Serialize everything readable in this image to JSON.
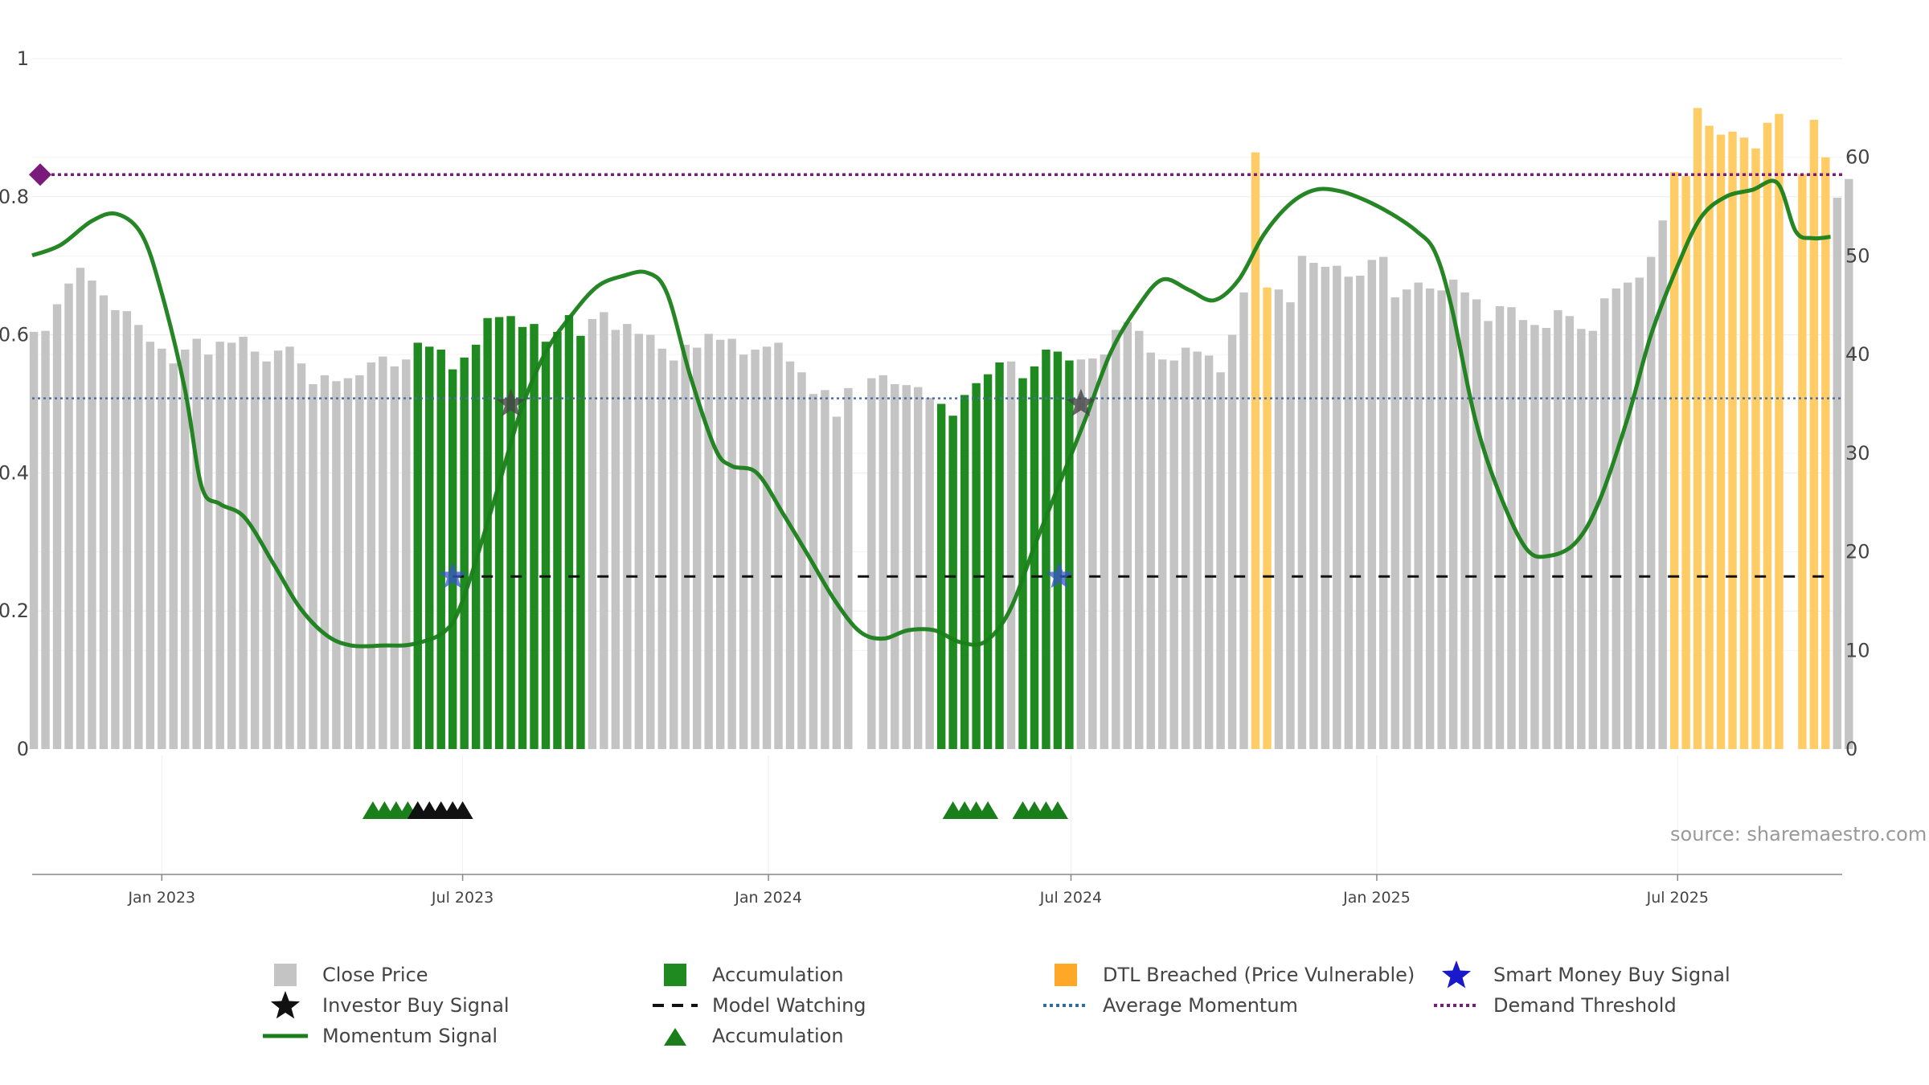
{
  "chart_data": {
    "type": "bar",
    "source_text": "source: sharemaestro.com",
    "left_axis": {
      "ylim": [
        0,
        1
      ],
      "ticks": [
        "0",
        "0.2",
        "0.4",
        "0.6",
        "0.8",
        "1"
      ]
    },
    "right_axis": {
      "ylim": [
        0,
        70
      ],
      "ticks": [
        "0",
        "10",
        "20",
        "30",
        "40",
        "50",
        "60"
      ]
    },
    "x_range": [
      "2022-10-15",
      "2025-10-08"
    ],
    "x_ticks": [
      {
        "date": "2023-01-01",
        "label": "Jan 2023"
      },
      {
        "date": "2023-07-01",
        "label": "Jul 2023"
      },
      {
        "date": "2024-01-01",
        "label": "Jan 2024"
      },
      {
        "date": "2024-07-01",
        "label": "Jul 2024"
      },
      {
        "date": "2025-01-01",
        "label": "Jan 2025"
      },
      {
        "date": "2025-07-01",
        "label": "Jul 2025"
      }
    ],
    "close_price": {
      "start": "2022-10-16",
      "interval_days": 7,
      "values": [
        42.3,
        42.4,
        45.1,
        47.2,
        48.8,
        47.5,
        46.0,
        44.5,
        44.4,
        43.0,
        41.3,
        40.6,
        39.1,
        40.5,
        41.6,
        40.0,
        41.3,
        41.2,
        41.8,
        40.3,
        39.3,
        40.4,
        40.8,
        39.1,
        37.0,
        37.9,
        37.3,
        37.6,
        37.9,
        39.2,
        39.8,
        38.8,
        39.5,
        41.2,
        40.8,
        40.5,
        38.5,
        39.7,
        41.0,
        43.7,
        43.8,
        43.9,
        42.8,
        43.1,
        41.3,
        42.3,
        44.0,
        41.9,
        43.6,
        44.3,
        42.5,
        43.1,
        42.1,
        42.0,
        40.6,
        39.4,
        41.0,
        40.7,
        42.1,
        41.5,
        41.6,
        40.0,
        40.5,
        40.8,
        41.2,
        39.3,
        38.2,
        36.0,
        36.4,
        33.7,
        36.6,
        0,
        37.6,
        37.9,
        37.0,
        36.9,
        36.7,
        35.6,
        35.0,
        33.8,
        35.9,
        37.1,
        38.0,
        39.2,
        39.3,
        37.6,
        38.8,
        40.5,
        40.3,
        39.4,
        39.5,
        39.6,
        40.0,
        42.5,
        43.3,
        42.4,
        40.2,
        39.5,
        39.4,
        40.7,
        40.3,
        39.9,
        38.2,
        42.0,
        46.3,
        46.1,
        46.8,
        46.6,
        45.3,
        50.0,
        49.3,
        48.9,
        49.0,
        47.9,
        48.0,
        49.6,
        49.9,
        45.8,
        46.6,
        47.3,
        46.7,
        46.5,
        47.6,
        46.3,
        45.6,
        43.4,
        44.9,
        44.8,
        43.5,
        43.0,
        42.7,
        44.5,
        43.9,
        42.6,
        42.4,
        45.7,
        46.7,
        47.3,
        47.8,
        49.9,
        53.6,
        52.9,
        54.9,
        56.4,
        56.6,
        57.7,
        56.6,
        55.9,
        54.5,
        55.7,
        57.5,
        58.8,
        58.0,
        54.4,
        60.0,
        55.9,
        57.8
      ],
      "color": "#c4c4c4"
    },
    "accumulation_bars": {
      "color": "#1f8a1f",
      "ranges": [
        [
          "2023-06-04",
          "2023-09-10"
        ],
        [
          "2024-04-14",
          "2024-05-19"
        ],
        [
          "2024-06-02",
          "2024-07-01"
        ]
      ]
    },
    "dtl_breached_bars": {
      "color": "#ffcc66",
      "ranges": [
        [
          "2024-10-20",
          "2024-10-27"
        ],
        [
          "2025-06-29",
          "2025-10-01"
        ]
      ]
    },
    "dtl_breached_overrides": {
      "2024-10-20": 60.5,
      "2025-06-29": 58.5,
      "2025-07-06": 58.1,
      "2025-07-13": 65.0,
      "2025-07-20": 63.2,
      "2025-07-27": 62.3,
      "2025-08-03": 62.6,
      "2025-08-10": 62.0,
      "2025-08-17": 60.9,
      "2025-08-24": 63.5,
      "2025-08-31": 64.4,
      "2025-09-07": 0,
      "2025-09-14": 58.3,
      "2025-09-21": 63.8
    },
    "momentum_signal": {
      "color": "#1a7f1a",
      "points": [
        [
          "2022-10-15",
          0.715
        ],
        [
          "2022-11-01",
          0.73
        ],
        [
          "2022-11-20",
          0.765
        ],
        [
          "2022-12-05",
          0.775
        ],
        [
          "2022-12-20",
          0.745
        ],
        [
          "2023-01-01",
          0.66
        ],
        [
          "2023-01-15",
          0.52
        ],
        [
          "2023-01-25",
          0.38
        ],
        [
          "2023-02-05",
          0.355
        ],
        [
          "2023-02-20",
          0.335
        ],
        [
          "2023-03-10",
          0.265
        ],
        [
          "2023-03-25",
          0.205
        ],
        [
          "2023-04-10",
          0.165
        ],
        [
          "2023-04-25",
          0.15
        ],
        [
          "2023-05-15",
          0.15
        ],
        [
          "2023-06-01",
          0.152
        ],
        [
          "2023-06-20",
          0.17
        ],
        [
          "2023-07-01",
          0.215
        ],
        [
          "2023-07-20",
          0.36
        ],
        [
          "2023-08-05",
          0.49
        ],
        [
          "2023-08-20",
          0.575
        ],
        [
          "2023-09-05",
          0.63
        ],
        [
          "2023-09-20",
          0.67
        ],
        [
          "2023-10-05",
          0.685
        ],
        [
          "2023-10-20",
          0.69
        ],
        [
          "2023-11-01",
          0.66
        ],
        [
          "2023-11-15",
          0.54
        ],
        [
          "2023-11-30",
          0.435
        ],
        [
          "2023-12-10",
          0.41
        ],
        [
          "2023-12-25",
          0.4
        ],
        [
          "2024-01-10",
          0.34
        ],
        [
          "2024-01-25",
          0.28
        ],
        [
          "2024-02-10",
          0.215
        ],
        [
          "2024-02-25",
          0.17
        ],
        [
          "2024-03-10",
          0.16
        ],
        [
          "2024-03-25",
          0.172
        ],
        [
          "2024-04-10",
          0.172
        ],
        [
          "2024-04-25",
          0.155
        ],
        [
          "2024-05-10",
          0.155
        ],
        [
          "2024-05-25",
          0.2
        ],
        [
          "2024-06-10",
          0.3
        ],
        [
          "2024-06-25",
          0.39
        ],
        [
          "2024-07-10",
          0.48
        ],
        [
          "2024-07-25",
          0.575
        ],
        [
          "2024-08-10",
          0.64
        ],
        [
          "2024-08-25",
          0.68
        ],
        [
          "2024-09-10",
          0.665
        ],
        [
          "2024-09-25",
          0.65
        ],
        [
          "2024-10-10",
          0.68
        ],
        [
          "2024-10-25",
          0.745
        ],
        [
          "2024-11-10",
          0.79
        ],
        [
          "2024-11-25",
          0.81
        ],
        [
          "2024-12-10",
          0.808
        ],
        [
          "2024-12-25",
          0.795
        ],
        [
          "2025-01-10",
          0.775
        ],
        [
          "2025-01-25",
          0.75
        ],
        [
          "2025-02-05",
          0.72
        ],
        [
          "2025-02-15",
          0.64
        ],
        [
          "2025-03-01",
          0.48
        ],
        [
          "2025-03-15",
          0.375
        ],
        [
          "2025-04-01",
          0.29
        ],
        [
          "2025-04-15",
          0.28
        ],
        [
          "2025-05-01",
          0.3
        ],
        [
          "2025-05-15",
          0.36
        ],
        [
          "2025-06-01",
          0.48
        ],
        [
          "2025-06-15",
          0.6
        ],
        [
          "2025-07-01",
          0.7
        ],
        [
          "2025-07-15",
          0.77
        ],
        [
          "2025-07-30",
          0.8
        ],
        [
          "2025-08-15",
          0.81
        ],
        [
          "2025-08-30",
          0.82
        ],
        [
          "2025-09-10",
          0.75
        ],
        [
          "2025-09-20",
          0.74
        ],
        [
          "2025-10-01",
          0.742
        ]
      ]
    },
    "average_momentum": {
      "value": 0.508,
      "color": "#4a6fa5"
    },
    "demand_threshold": {
      "value": 0.832,
      "color": "#7a1a7a"
    },
    "model_watching": {
      "value": 0.25,
      "start": "2023-06-25",
      "end": "2025-10-05",
      "color": "#111111"
    },
    "smart_money_buy_signal": {
      "color": "#3a56c9",
      "points": [
        [
          "2023-06-25",
          0.25
        ],
        [
          "2024-06-24",
          0.25
        ]
      ]
    },
    "investor_buy_signal": {
      "color": "#444444",
      "points": [
        [
          "2023-07-30",
          0.5
        ],
        [
          "2024-07-07",
          0.5
        ]
      ]
    },
    "accumulation_markers": {
      "green": [
        "2023-05-08",
        "2023-05-15",
        "2023-05-22",
        "2023-05-29",
        "2024-04-21",
        "2024-04-28",
        "2024-05-05",
        "2024-05-12",
        "2024-06-02",
        "2024-06-09",
        "2024-06-16",
        "2024-06-23"
      ],
      "black": [
        "2023-06-04",
        "2023-06-11",
        "2023-06-18",
        "2023-06-25",
        "2023-07-01"
      ]
    },
    "legend": [
      {
        "label": "Close Price",
        "icon": "square-icon",
        "color": "#c4c4c4"
      },
      {
        "label": "Accumulation",
        "icon": "square-icon",
        "color": "#1f8a1f"
      },
      {
        "label": "DTL Breached (Price Vulnerable)",
        "icon": "square-icon",
        "color": "#ffa726"
      },
      {
        "label": "Smart Money Buy Signal",
        "icon": "star-icon",
        "color": "#1a1acc"
      },
      {
        "label": "Investor Buy Signal",
        "icon": "star-icon",
        "color": "#111111"
      },
      {
        "label": "Model Watching",
        "icon": "dash-icon",
        "color": "#111111"
      },
      {
        "label": "Average Momentum",
        "icon": "dot-line-icon",
        "color": "#2a6fa5"
      },
      {
        "label": "Demand Threshold",
        "icon": "dot-line-icon",
        "color": "#7a1a7a"
      },
      {
        "label": "Momentum Signal",
        "icon": "line-icon",
        "color": "#1a7f1a"
      },
      {
        "label": "Accumulation",
        "icon": "triangle-icon",
        "color": "#1a7f1a"
      }
    ]
  }
}
